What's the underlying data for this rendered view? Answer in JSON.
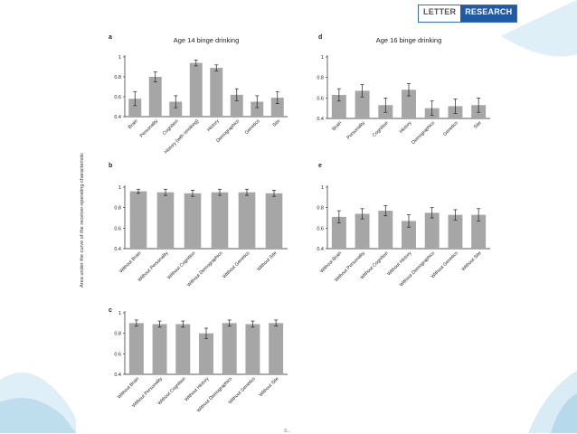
{
  "header": {
    "badge_left": "LETTER",
    "badge_right": "RESEARCH"
  },
  "y_axis_title": "Area under the curve of the receiver-operating characteristic",
  "footer_fragment": "S...",
  "colors": {
    "bar": "#a6a6a6",
    "axis": "#222222",
    "badge_blue": "#1e5aa8",
    "wave": "#c9e4f2"
  },
  "chart_data": [
    {
      "id": "a",
      "panel_letter": "a",
      "type": "bar",
      "title": "Age 14 binge drinking",
      "categories": [
        "Brain",
        "Personality",
        "Cognition",
        "History (with smoking)",
        "History",
        "Demographics",
        "Genetics",
        "Site"
      ],
      "values": [
        0.58,
        0.8,
        0.55,
        0.94,
        0.89,
        0.62,
        0.55,
        0.59
      ],
      "errors": [
        0.07,
        0.05,
        0.06,
        0.03,
        0.03,
        0.06,
        0.06,
        0.06
      ],
      "ylim": [
        0.4,
        1
      ],
      "yticks": [
        "1",
        "0.8",
        "0.6",
        "0.4"
      ],
      "ytick_values": [
        1,
        0.8,
        0.6,
        0.4
      ]
    },
    {
      "id": "d",
      "panel_letter": "d",
      "type": "bar",
      "title": "Age 16 binge drinking",
      "categories": [
        "Brain",
        "Personality",
        "Cognition",
        "History",
        "Demographics",
        "Genetics",
        "Site"
      ],
      "values": [
        0.63,
        0.67,
        0.53,
        0.68,
        0.5,
        0.52,
        0.53
      ],
      "errors": [
        0.06,
        0.06,
        0.07,
        0.06,
        0.07,
        0.07,
        0.07
      ],
      "ylim": [
        0.4,
        1
      ],
      "yticks": [
        "1",
        "0.8",
        "0.6",
        "0.4"
      ],
      "ytick_values": [
        1,
        0.8,
        0.6,
        0.4
      ]
    },
    {
      "id": "b",
      "panel_letter": "b",
      "type": "bar",
      "title": "",
      "categories": [
        "Without Brain",
        "Without Personality",
        "Without Cognition",
        "Without Demographics",
        "Without Genetics",
        "Without Site"
      ],
      "values": [
        0.96,
        0.95,
        0.94,
        0.95,
        0.95,
        0.94
      ],
      "errors": [
        0.02,
        0.03,
        0.03,
        0.03,
        0.03,
        0.03
      ],
      "ylim": [
        0.4,
        1
      ],
      "yticks": [
        "1",
        "0.8",
        "0.6",
        "0.4"
      ],
      "ytick_values": [
        1,
        0.8,
        0.6,
        0.4
      ]
    },
    {
      "id": "e",
      "panel_letter": "e",
      "type": "bar",
      "title": "",
      "categories": [
        "Without Brain",
        "Without Personality",
        "Without Cognition",
        "Without History",
        "Without Demographics",
        "Without Genetics",
        "Without Site"
      ],
      "values": [
        0.71,
        0.74,
        0.77,
        0.67,
        0.75,
        0.73,
        0.73
      ],
      "errors": [
        0.06,
        0.05,
        0.05,
        0.06,
        0.05,
        0.05,
        0.06
      ],
      "ylim": [
        0.4,
        1
      ],
      "yticks": [
        "1",
        "0.8",
        "0.6",
        "0.4"
      ],
      "ytick_values": [
        1,
        0.8,
        0.6,
        0.4
      ]
    },
    {
      "id": "c",
      "panel_letter": "c",
      "type": "bar",
      "title": "",
      "categories": [
        "Without Brain",
        "Without Personality",
        "Without Cognition",
        "Without History",
        "Without Demographics",
        "Without Genetics",
        "Without Site"
      ],
      "values": [
        0.9,
        0.89,
        0.89,
        0.8,
        0.9,
        0.89,
        0.9
      ],
      "errors": [
        0.03,
        0.03,
        0.03,
        0.05,
        0.03,
        0.03,
        0.03
      ],
      "ylim": [
        0.4,
        1
      ],
      "yticks": [
        "1",
        "0.8",
        "0.6",
        "0.4"
      ],
      "ytick_values": [
        1,
        0.8,
        0.6,
        0.4
      ]
    }
  ]
}
